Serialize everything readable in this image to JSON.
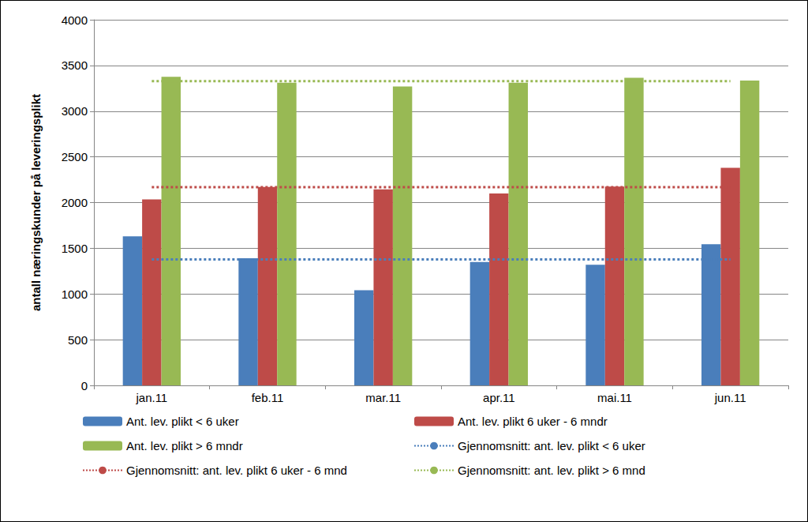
{
  "chart_data": {
    "type": "bar",
    "y_label": "antall næringskunder på leveringsplikt",
    "categories": [
      "jan.11",
      "feb.11",
      "mar.11",
      "apr.11",
      "mai.11",
      "jun.11"
    ],
    "series": [
      {
        "name": "Ant. lev. plikt < 6 uker",
        "type": "bar",
        "color": "#4a7ebb",
        "values": [
          1630,
          1390,
          1040,
          1350,
          1320,
          1545
        ]
      },
      {
        "name": "Ant. lev. plikt 6 uker - 6 mndr",
        "type": "bar",
        "color": "#be4b48",
        "values": [
          2035,
          2170,
          2145,
          2100,
          2175,
          2380
        ]
      },
      {
        "name": "Ant. lev. plikt > 6 mndr",
        "type": "bar",
        "color": "#98b954",
        "values": [
          3375,
          3310,
          3270,
          3310,
          3365,
          3335
        ]
      },
      {
        "name": "Gjennomsnitt: ant. lev. plikt < 6 uker",
        "type": "line",
        "line_style": "dotted",
        "color": "#4a7ebb",
        "values": [
          1379,
          1379,
          1379,
          1379,
          1379,
          1379
        ]
      },
      {
        "name": "Gjennomsnitt: ant. lev. plikt 6 uker - 6 mnd",
        "type": "line",
        "line_style": "dotted",
        "color": "#be4b48",
        "values": [
          2168,
          2168,
          2168,
          2168,
          2168,
          2168
        ]
      },
      {
        "name": "Gjennomsnitt: ant. lev. plikt > 6 mnd",
        "type": "line",
        "line_style": "dotted",
        "color": "#98b954",
        "values": [
          3328,
          3328,
          3328,
          3328,
          3328,
          3328
        ]
      }
    ],
    "ylim": [
      0,
      4000
    ],
    "yticks": [
      0,
      500,
      1000,
      1500,
      2000,
      2500,
      3000,
      3500,
      4000
    ],
    "grid": true,
    "legend": "bottom"
  }
}
